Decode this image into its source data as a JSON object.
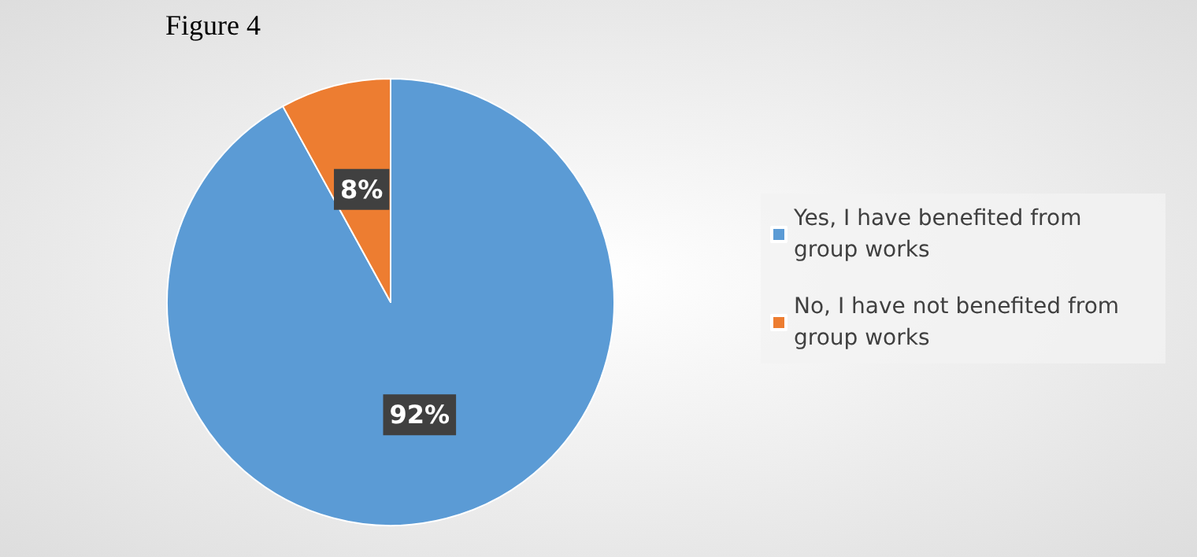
{
  "chart_data": {
    "type": "pie",
    "title": "Figure 4",
    "categories": [
      "Yes, I have benefited from group works",
      "No, I have not benefited from group works"
    ],
    "values": [
      92,
      8
    ],
    "colors": [
      "#5b9bd5",
      "#ed7d31"
    ],
    "value_labels": [
      "92%",
      "8%"
    ],
    "legend": "right"
  }
}
